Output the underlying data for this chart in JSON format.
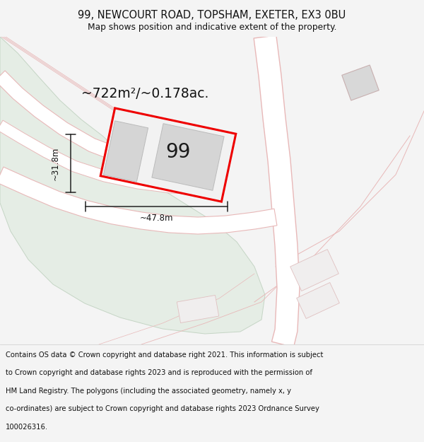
{
  "title": "99, NEWCOURT ROAD, TOPSHAM, EXETER, EX3 0BU",
  "subtitle": "Map shows position and indicative extent of the property.",
  "area_label": "~722m²/~0.178ac.",
  "number_label": "99",
  "dim_width": "~47.8m",
  "dim_height": "~31.8m",
  "footer_lines": [
    "Contains OS data © Crown copyright and database right 2021. This information is subject",
    "to Crown copyright and database rights 2023 and is reproduced with the permission of",
    "HM Land Registry. The polygons (including the associated geometry, namely x, y",
    "co-ordinates) are subject to Crown copyright and database rights 2023 Ordnance Survey",
    "100026316."
  ],
  "bg_color": "#f4f4f4",
  "map_bg": "#f8f8f8",
  "green_color": "#e5ede5",
  "green_edge": "#c5d5c5",
  "road_white": "#ffffff",
  "road_edge": "#e8b8b8",
  "plot_fill": "#f2f2f2",
  "plot_edge": "#ee0000",
  "bldg_fill": "#d5d5d5",
  "bldg_edge": "#bbbbbb",
  "dim_color": "#222222",
  "title_fontsize": 10.5,
  "subtitle_fontsize": 8.8,
  "area_fontsize": 13.5,
  "number_fontsize": 20,
  "dim_fontsize": 8.5,
  "footer_fontsize": 7.2
}
